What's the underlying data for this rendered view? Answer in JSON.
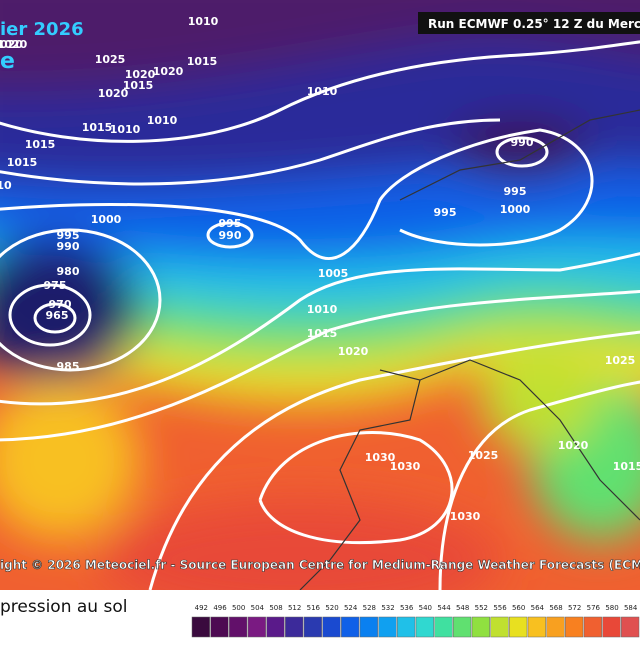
{
  "header": {
    "date": "ier 2026",
    "sub_a": "020",
    "sub_b": "e",
    "run": "Run ECMWF 0.25° 12 Z du Mercr"
  },
  "isobar_labels": [
    "1010",
    "1020",
    "1025",
    "1020",
    "1015",
    "1020",
    "1015",
    "1020",
    "1010",
    "1015",
    "1010",
    "1010",
    "1015",
    "1015",
    "990",
    "995",
    "1000",
    "995",
    "1000",
    "995",
    "990",
    "995",
    "990",
    "1005",
    "980",
    "975",
    "970",
    "965",
    "1010",
    "1015",
    "1020",
    "985",
    "1025",
    "1020",
    "1025",
    "1030",
    "1030",
    "1030",
    "1015",
    "10"
  ],
  "footer": {
    "credit": "ight © 2026 Meteociel.fr - Source European Centre for Medium-Range Weather Forecasts (ECM",
    "legend_title": "pression au sol"
  },
  "colorbar": {
    "labels": [
      "492",
      "496",
      "500",
      "504",
      "508",
      "512",
      "516",
      "520",
      "524",
      "528",
      "532",
      "536",
      "540",
      "544",
      "548",
      "552",
      "556",
      "560",
      "564",
      "568",
      "572",
      "576",
      "580",
      "584"
    ],
    "colors": [
      "#3a0a3e",
      "#4d0a52",
      "#62106a",
      "#7a1a82",
      "#5a1a8a",
      "#3c2a9a",
      "#2a3ab0",
      "#1a4ad0",
      "#1060e8",
      "#0a80f0",
      "#10a0f0",
      "#20c0e8",
      "#30d8d0",
      "#40e0a0",
      "#60e070",
      "#90e040",
      "#c0e030",
      "#e8e020",
      "#f8c020",
      "#f8a020",
      "#f88020",
      "#f06030",
      "#e84838",
      "#e05050"
    ]
  }
}
